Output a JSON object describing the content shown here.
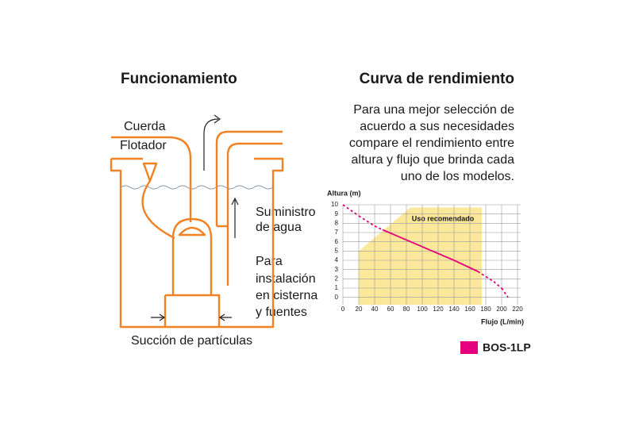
{
  "diagram": {
    "title": "Funcionamiento",
    "labels": [
      "Cuerda",
      "Flotador",
      "Suministro",
      "de agua",
      "Para",
      "instalación",
      "en cisterna",
      "y fuentes",
      "Succión de partículas"
    ]
  },
  "chart_data": {
    "type": "line",
    "title": "Curva de rendimiento",
    "description": [
      "Para una mejor selección de",
      "acuerdo a sus necesidades",
      "compare el rendimiento entre",
      "altura y flujo que brinda cada",
      "uno de los modelos."
    ],
    "y_label": "Altura (m)",
    "x_label": "Flujo (L/min)",
    "xlim": [
      0,
      220
    ],
    "xticks": [
      0,
      20,
      40,
      60,
      80,
      100,
      120,
      140,
      160,
      180,
      200,
      220
    ],
    "ylim": [
      -0.8,
      10
    ],
    "yticks": [
      0,
      1,
      2,
      3,
      4,
      5,
      6,
      7,
      8,
      9,
      10
    ],
    "grid": true,
    "region": {
      "label": "Uso recomendado",
      "color": "#fbe89a",
      "x": [
        20,
        20,
        85,
        175,
        175
      ],
      "y": [
        -0.8,
        5,
        9.7,
        9.7,
        -0.8
      ]
    },
    "series": [
      {
        "name": "BOS-1LP",
        "color": "#e4007c",
        "x": [
          0,
          20,
          40,
          50,
          80,
          110,
          140,
          170,
          190,
          200,
          208
        ],
        "values": [
          10,
          8.8,
          7.7,
          7.3,
          6.2,
          5.1,
          4.0,
          2.8,
          1.7,
          1.0,
          0
        ],
        "segment_styles": [
          "dashed",
          "dashed",
          "dashed",
          "solid",
          "solid",
          "solid",
          "solid",
          "dashed",
          "dashed",
          "dashed"
        ]
      }
    ]
  }
}
